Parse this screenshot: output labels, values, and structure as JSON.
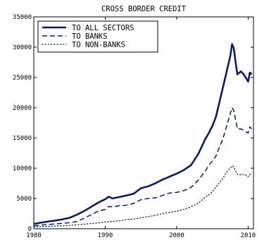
{
  "chart_data": {
    "type": "line",
    "title": "CROSS BORDER CREDIT",
    "xlabel": "",
    "ylabel": "",
    "xlim": [
      1980,
      2010.75
    ],
    "ylim": [
      0,
      35000
    ],
    "xticks": [
      1980,
      1990,
      2000,
      2010
    ],
    "yticks": [
      0,
      5000,
      10000,
      15000,
      20000,
      25000,
      30000,
      35000
    ],
    "grid": false,
    "legend_position": "top-left",
    "series": [
      {
        "name": "TO ALL SECTORS",
        "style": "solid",
        "color": "#0b1e5c",
        "x": [
          1980,
          1981,
          1982,
          1983,
          1984,
          1985,
          1986,
          1987,
          1988,
          1989,
          1990,
          1990.5,
          1991,
          1992,
          1993,
          1994,
          1995,
          1996,
          1997,
          1998,
          1999,
          2000,
          2001,
          2002,
          2003,
          2004,
          2004.5,
          2005,
          2005.5,
          2006,
          2006.5,
          2007,
          2007.5,
          2007.75,
          2008,
          2008.25,
          2008.5,
          2009,
          2009.5,
          2010,
          2010.25,
          2010.5
        ],
        "y": [
          800,
          1000,
          1200,
          1350,
          1550,
          1800,
          2300,
          2900,
          3600,
          4300,
          4900,
          5300,
          5000,
          5250,
          5500,
          5800,
          6700,
          7000,
          7500,
          8100,
          8600,
          9100,
          9700,
          10500,
          12300,
          14800,
          15800,
          17000,
          18500,
          21000,
          23500,
          26000,
          28500,
          30500,
          29800,
          27500,
          25500,
          26000,
          25300,
          24300,
          25800,
          25500
        ]
      },
      {
        "name": "TO BANKS",
        "style": "dashed",
        "color": "#0b1e5c",
        "x": [
          1980,
          1981,
          1982,
          1983,
          1984,
          1985,
          1986,
          1987,
          1988,
          1989,
          1990,
          1990.5,
          1991,
          1992,
          1993,
          1994,
          1995,
          1996,
          1997,
          1998,
          1999,
          2000,
          2001,
          2002,
          2003,
          2004,
          2004.5,
          2005,
          2005.5,
          2006,
          2006.5,
          2007,
          2007.5,
          2007.75,
          2008,
          2008.25,
          2008.5,
          2009,
          2009.5,
          2010,
          2010.25,
          2010.5
        ],
        "y": [
          500,
          600,
          700,
          800,
          900,
          1000,
          1200,
          1700,
          2300,
          2900,
          3200,
          3700,
          3600,
          3800,
          3900,
          4200,
          4800,
          5000,
          5100,
          5500,
          5900,
          6000,
          6300,
          6800,
          8000,
          9500,
          10500,
          11200,
          12000,
          13500,
          15000,
          17000,
          19000,
          20000,
          19500,
          18000,
          16500,
          16500,
          16200,
          15800,
          16800,
          16500
        ]
      },
      {
        "name": "TO NON-BANKS",
        "style": "dotted",
        "color": "#0b1e5c",
        "x": [
          1980,
          1981,
          1982,
          1983,
          1984,
          1985,
          1986,
          1987,
          1988,
          1989,
          1990,
          1991,
          1992,
          1993,
          1994,
          1995,
          1996,
          1997,
          1998,
          1999,
          2000,
          2001,
          2002,
          2003,
          2004,
          2004.5,
          2005,
          2005.5,
          2006,
          2006.5,
          2007,
          2007.5,
          2007.75,
          2008,
          2008.25,
          2008.5,
          2009,
          2009.5,
          2010,
          2010.25,
          2010.5
        ],
        "y": [
          300,
          350,
          400,
          450,
          500,
          550,
          650,
          750,
          850,
          950,
          1100,
          1200,
          1300,
          1500,
          1600,
          1800,
          2000,
          2200,
          2500,
          2700,
          2900,
          3200,
          3600,
          4200,
          5200,
          5600,
          6100,
          6900,
          7600,
          8400,
          9400,
          10000,
          10400,
          10200,
          9500,
          9000,
          8900,
          9000,
          8600,
          9000,
          8800
        ]
      }
    ]
  }
}
